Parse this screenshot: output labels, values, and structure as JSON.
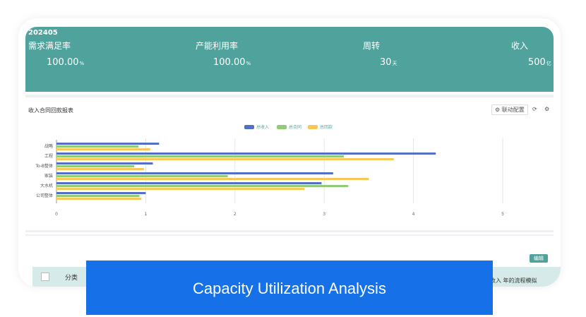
{
  "kpi": {
    "period": "202405",
    "items": [
      {
        "label": "需求满足率",
        "value": "100.00",
        "unit": "%"
      },
      {
        "label": "产能利用率",
        "value": "100.00",
        "unit": "%"
      },
      {
        "label": "周转",
        "value": "30",
        "unit": "天"
      },
      {
        "label": "收入",
        "value": "500",
        "unit": "亿"
      }
    ]
  },
  "chart_header": {
    "title": "收入合同回款报表",
    "link_config_label": "联动配置"
  },
  "chart_data": {
    "type": "bar",
    "orientation": "horizontal",
    "categories": [
      "战略",
      "工程",
      "To-B整体",
      "家装",
      "大水机",
      "公司整体"
    ],
    "series": [
      {
        "name": "总收入",
        "color": "#5470c6",
        "values": [
          1.15,
          4.25,
          1.08,
          3.1,
          2.97,
          1.0
        ]
      },
      {
        "name": "总合同",
        "color": "#91cc75",
        "values": [
          0.92,
          3.22,
          0.87,
          1.92,
          3.27,
          0.93
        ]
      },
      {
        "name": "总回款",
        "color": "#fac858",
        "values": [
          1.05,
          3.78,
          0.98,
          3.5,
          2.78,
          0.95
        ]
      }
    ],
    "x_ticks": [
      "0",
      "1",
      "2",
      "3",
      "4",
      "5"
    ],
    "xlim": [
      0,
      5
    ],
    "grid": true,
    "legend": "top-center"
  },
  "table": {
    "edit_label": "编辑",
    "col_category": "分类",
    "col_right_partial": "收入  年的流程模拟"
  },
  "banner": {
    "text": "Capacity Utilization Analysis"
  }
}
